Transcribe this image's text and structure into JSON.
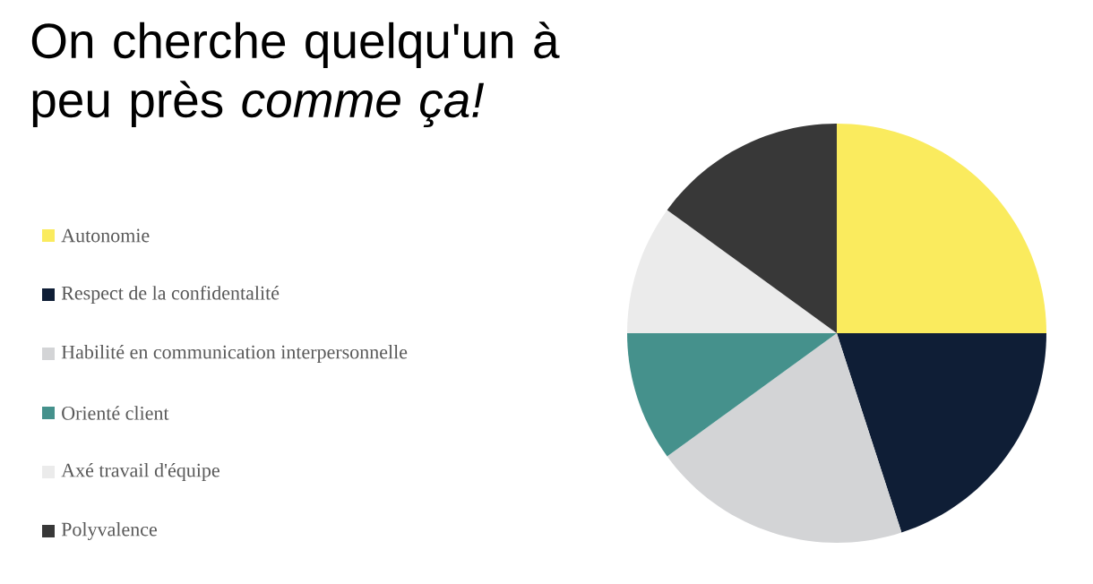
{
  "chart_data": {
    "type": "pie",
    "title": "On cherche quelqu'un à peu près *comme ça!*",
    "categories": [
      "Autonomie",
      "Respect de la confidentalité",
      "Habilité en communication interpersonnelle",
      "Orienté client",
      "Axé travail d'équipe",
      "Polyvalence"
    ],
    "values": [
      25,
      20,
      20,
      10,
      10,
      15
    ],
    "colors": [
      "#faeb5e",
      "#0f1e36",
      "#d3d4d6",
      "#45918c",
      "#ebebeb",
      "#383838"
    ],
    "legend": "left"
  }
}
